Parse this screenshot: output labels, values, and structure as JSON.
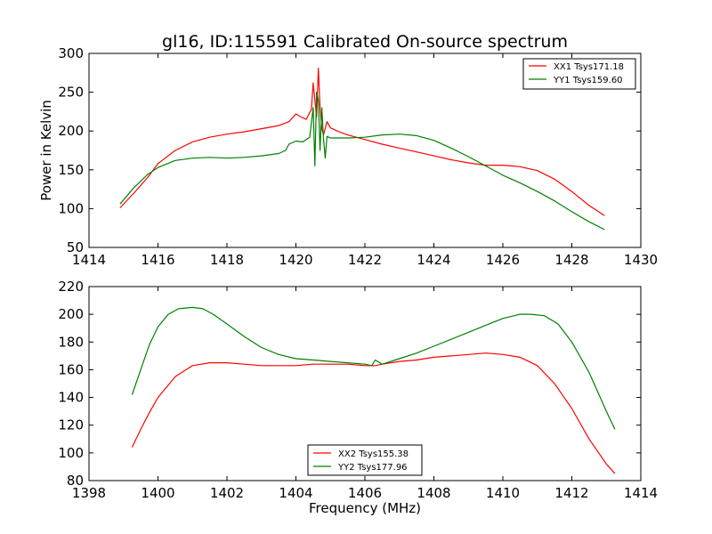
{
  "figure": {
    "title": "gl16, ID:115591 Calibrated On-source spectrum"
  },
  "chart_data": [
    {
      "type": "line",
      "title": "gl16, ID:115591 Calibrated On-source spectrum",
      "xlabel": "",
      "ylabel": "Power in Kelvin",
      "xlim": [
        1414,
        1430
      ],
      "ylim": [
        50,
        300
      ],
      "xticks": [
        "1414",
        "1416",
        "1418",
        "1420",
        "1422",
        "1424",
        "1426",
        "1428",
        "1430"
      ],
      "yticks": [
        "50",
        "100",
        "150",
        "200",
        "250",
        "300"
      ],
      "grid": false,
      "legend_position": "top-right",
      "series": [
        {
          "name": "XX1 Tsys171.18",
          "color": "#ff0000",
          "x": [
            1414.9,
            1415.3,
            1415.7,
            1416.0,
            1416.5,
            1417.0,
            1417.5,
            1418.0,
            1418.5,
            1419.0,
            1419.5,
            1419.8,
            1420.0,
            1420.15,
            1420.3,
            1420.45,
            1420.5,
            1420.55,
            1420.6,
            1420.65,
            1420.7,
            1420.75,
            1420.8,
            1420.9,
            1421.0,
            1421.2,
            1421.5,
            1422.0,
            1422.5,
            1423.0,
            1423.5,
            1424.0,
            1424.5,
            1425.0,
            1425.5,
            1426.0,
            1426.5,
            1427.0,
            1427.5,
            1428.0,
            1428.5,
            1428.95
          ],
          "y": [
            101,
            120,
            140,
            158,
            175,
            186,
            192,
            196,
            199,
            203,
            207,
            212,
            222,
            218,
            215,
            228,
            262,
            240,
            218,
            281,
            230,
            203,
            195,
            212,
            204,
            200,
            195,
            189,
            183,
            178,
            173,
            168,
            163,
            159,
            156,
            156,
            154,
            149,
            138,
            122,
            104,
            91
          ]
        },
        {
          "name": "YY1 Tsys159.60",
          "color": "#008000",
          "x": [
            1414.9,
            1415.3,
            1415.7,
            1416.0,
            1416.5,
            1417.0,
            1417.5,
            1418.0,
            1418.5,
            1419.0,
            1419.5,
            1419.7,
            1419.8,
            1420.0,
            1420.2,
            1420.4,
            1420.5,
            1420.55,
            1420.6,
            1420.65,
            1420.7,
            1420.75,
            1420.8,
            1420.85,
            1420.9,
            1421.0,
            1421.5,
            1422.0,
            1422.5,
            1423.0,
            1423.5,
            1424.0,
            1424.5,
            1425.0,
            1425.5,
            1426.0,
            1426.5,
            1427.0,
            1427.5,
            1428.0,
            1428.5,
            1428.95
          ],
          "y": [
            106,
            127,
            144,
            153,
            162,
            165,
            166,
            165,
            166,
            168,
            171,
            175,
            183,
            187,
            186,
            192,
            230,
            155,
            250,
            240,
            175,
            230,
            190,
            165,
            193,
            191,
            191,
            192,
            195,
            196,
            194,
            188,
            178,
            167,
            155,
            143,
            133,
            122,
            110,
            96,
            83,
            73
          ]
        }
      ]
    },
    {
      "type": "line",
      "title": "",
      "xlabel": "Frequency (MHz)",
      "ylabel": "",
      "xlim": [
        1398,
        1414
      ],
      "ylim": [
        80,
        220
      ],
      "xticks": [
        "1398",
        "1400",
        "1402",
        "1404",
        "1406",
        "1408",
        "1410",
        "1412",
        "1414"
      ],
      "yticks": [
        "80",
        "100",
        "120",
        "140",
        "160",
        "180",
        "200",
        "220"
      ],
      "grid": false,
      "legend_position": "bottom-center",
      "series": [
        {
          "name": "XX2 Tsys155.38",
          "color": "#ff0000",
          "x": [
            1399.25,
            1399.5,
            1399.75,
            1400.0,
            1400.5,
            1401.0,
            1401.5,
            1402.0,
            1402.5,
            1403.0,
            1403.5,
            1404.0,
            1404.5,
            1405.0,
            1405.5,
            1406.0,
            1406.3,
            1406.5,
            1407.0,
            1407.5,
            1408.0,
            1408.5,
            1409.0,
            1409.5,
            1410.0,
            1410.5,
            1411.0,
            1411.5,
            1412.0,
            1412.5,
            1413.0,
            1413.25
          ],
          "y": [
            104,
            117,
            129,
            140,
            155,
            163,
            165,
            165,
            164,
            163,
            163,
            163,
            164,
            164,
            164,
            163,
            163,
            164,
            166,
            167,
            169,
            170,
            171,
            172,
            171,
            169,
            163,
            150,
            132,
            110,
            92,
            85
          ]
        },
        {
          "name": "YY2 Tsys177.96",
          "color": "#008000",
          "x": [
            1399.25,
            1399.5,
            1399.75,
            1400.0,
            1400.3,
            1400.6,
            1401.0,
            1401.3,
            1401.6,
            1402.0,
            1402.5,
            1403.0,
            1403.5,
            1404.0,
            1404.5,
            1405.0,
            1405.5,
            1406.0,
            1406.2,
            1406.3,
            1406.5,
            1407.0,
            1407.5,
            1408.0,
            1408.5,
            1409.0,
            1409.5,
            1410.0,
            1410.5,
            1410.8,
            1411.2,
            1411.6,
            1412.0,
            1412.5,
            1413.0,
            1413.25
          ],
          "y": [
            142,
            160,
            178,
            191,
            200,
            204,
            205,
            204,
            200,
            193,
            184,
            176,
            171,
            168,
            167,
            166,
            165,
            164,
            163,
            167,
            164,
            168,
            172,
            177,
            182,
            187,
            192,
            197,
            200,
            200,
            199,
            193,
            180,
            158,
            130,
            117
          ]
        }
      ]
    }
  ]
}
